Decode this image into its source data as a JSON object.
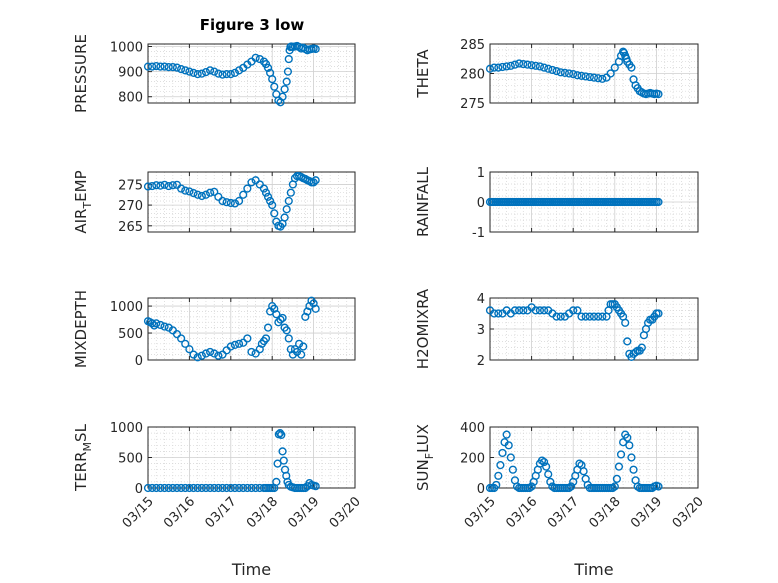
{
  "figure_title": "Figure 3 low",
  "chart_data": [
    {
      "type": "scatter",
      "ylabel": "PRESSURE",
      "ylim": [
        775,
        1010
      ],
      "yticks": [
        800,
        900,
        1000
      ],
      "title": "Figure 3 low",
      "marker_color": "#0072BD",
      "series": [
        {
          "x": [
            15.0,
            15.1,
            15.2,
            15.3,
            15.4,
            15.5,
            15.6,
            15.7,
            15.8,
            15.9,
            16.0,
            16.1,
            16.2,
            16.3,
            16.4,
            16.5,
            16.6,
            16.7,
            16.8,
            16.9,
            17.0,
            17.1,
            17.2,
            17.3,
            17.4,
            17.5,
            17.6,
            17.7,
            17.8,
            17.85,
            17.9,
            17.95,
            18.0,
            18.05,
            18.1,
            18.15,
            18.2,
            18.25,
            18.3,
            18.35,
            18.38,
            18.4,
            18.42,
            18.44,
            18.46,
            18.5,
            18.55,
            18.6,
            18.65,
            18.7,
            18.75,
            18.8,
            18.85,
            18.9,
            18.95,
            19.0,
            19.05
          ],
          "y": [
            920,
            920,
            922,
            920,
            920,
            918,
            918,
            916,
            910,
            905,
            900,
            895,
            890,
            892,
            898,
            905,
            900,
            892,
            888,
            890,
            890,
            895,
            905,
            915,
            928,
            940,
            955,
            950,
            940,
            930,
            915,
            895,
            870,
            840,
            810,
            785,
            778,
            800,
            830,
            860,
            900,
            950,
            985,
            998,
            1000,
            998,
            1000,
            1002,
            998,
            992,
            995,
            990,
            985,
            988,
            990,
            992,
            990
          ]
        }
      ]
    },
    {
      "type": "scatter",
      "ylabel": "THETA",
      "ylim": [
        275,
        285
      ],
      "yticks": [
        275,
        280,
        285
      ],
      "marker_color": "#0072BD",
      "series": [
        {
          "x": [
            15.0,
            15.1,
            15.2,
            15.3,
            15.4,
            15.5,
            15.6,
            15.7,
            15.8,
            15.9,
            16.0,
            16.1,
            16.2,
            16.3,
            16.4,
            16.5,
            16.6,
            16.7,
            16.8,
            16.9,
            17.0,
            17.1,
            17.2,
            17.3,
            17.4,
            17.5,
            17.6,
            17.7,
            17.8,
            17.9,
            18.0,
            18.1,
            18.15,
            18.2,
            18.22,
            18.25,
            18.28,
            18.3,
            18.35,
            18.4,
            18.45,
            18.5,
            18.55,
            18.6,
            18.65,
            18.7,
            18.75,
            18.8,
            18.85,
            18.9,
            18.95,
            19.0,
            19.05
          ],
          "y": [
            280.8,
            281.0,
            281.0,
            281.1,
            281.2,
            281.3,
            281.5,
            281.7,
            281.6,
            281.5,
            281.4,
            281.3,
            281.2,
            281.0,
            280.8,
            280.6,
            280.4,
            280.2,
            280.1,
            280.0,
            279.9,
            279.7,
            279.6,
            279.5,
            279.4,
            279.3,
            279.2,
            279.1,
            279.3,
            280.0,
            281.0,
            282.0,
            283.0,
            283.7,
            283.5,
            283.0,
            282.5,
            282.0,
            281.5,
            281.0,
            279.0,
            278.0,
            277.5,
            277.0,
            276.8,
            276.6,
            276.5,
            276.6,
            276.7,
            276.6,
            276.5,
            276.6,
            276.5
          ]
        }
      ]
    },
    {
      "type": "scatter",
      "ylabel": "AIR_TEMP",
      "ylim": [
        263.5,
        278
      ],
      "yticks": [
        265,
        270,
        275
      ],
      "marker_color": "#0072BD",
      "series": [
        {
          "x": [
            15.0,
            15.1,
            15.2,
            15.3,
            15.4,
            15.5,
            15.6,
            15.7,
            15.8,
            15.9,
            16.0,
            16.1,
            16.2,
            16.3,
            16.4,
            16.5,
            16.6,
            16.7,
            16.8,
            16.9,
            17.0,
            17.1,
            17.2,
            17.3,
            17.4,
            17.5,
            17.6,
            17.7,
            17.8,
            17.85,
            17.9,
            17.95,
            18.0,
            18.05,
            18.1,
            18.15,
            18.2,
            18.25,
            18.3,
            18.35,
            18.4,
            18.45,
            18.5,
            18.55,
            18.6,
            18.65,
            18.7,
            18.75,
            18.8,
            18.85,
            18.9,
            18.95,
            19.0,
            19.05
          ],
          "y": [
            274.5,
            274.6,
            274.8,
            274.7,
            274.9,
            274.6,
            274.8,
            274.9,
            274.0,
            273.5,
            273.3,
            272.9,
            272.5,
            272.2,
            272.5,
            273.0,
            273.2,
            272.0,
            271.0,
            270.7,
            270.5,
            270.4,
            271.0,
            272.5,
            274.0,
            275.5,
            276.0,
            275.0,
            274.0,
            273.0,
            272.0,
            271.0,
            270.0,
            268.0,
            266.0,
            265.0,
            264.8,
            265.5,
            267.0,
            269.0,
            271.0,
            273.0,
            275.0,
            276.5,
            277.0,
            277.0,
            276.8,
            276.5,
            276.3,
            276.0,
            275.8,
            275.5,
            275.5,
            276.0
          ]
        }
      ]
    },
    {
      "type": "scatter",
      "ylabel": "RAINFALL",
      "ylim": [
        -1,
        1
      ],
      "yticks": [
        -1,
        0,
        1
      ],
      "marker_color": "#0072BD",
      "series": [
        {
          "x_range": [
            15.0,
            19.05
          ],
          "n": 90,
          "y_constant": 0
        }
      ]
    },
    {
      "type": "scatter",
      "ylabel": "MIXDEPTH",
      "ylim": [
        0,
        1150
      ],
      "yticks": [
        0,
        500,
        1000
      ],
      "marker_color": "#0072BD",
      "series": [
        {
          "x": [
            15.0,
            15.05,
            15.1,
            15.15,
            15.2,
            15.3,
            15.4,
            15.5,
            15.6,
            15.7,
            15.8,
            15.9,
            16.0,
            16.1,
            16.2,
            16.3,
            16.4,
            16.5,
            16.6,
            16.7,
            16.8,
            16.9,
            17.0,
            17.1,
            17.2,
            17.3,
            17.4,
            17.5,
            17.6,
            17.7,
            17.75,
            17.8,
            17.85,
            17.9,
            17.95,
            18.0,
            18.05,
            18.1,
            18.15,
            18.2,
            18.25,
            18.3,
            18.35,
            18.4,
            18.45,
            18.5,
            18.55,
            18.6,
            18.65,
            18.7,
            18.75,
            18.8,
            18.85,
            18.9,
            18.95,
            19.0,
            19.05
          ],
          "y": [
            720,
            700,
            680,
            640,
            680,
            650,
            620,
            600,
            550,
            480,
            400,
            300,
            200,
            100,
            50,
            80,
            120,
            150,
            120,
            80,
            100,
            180,
            250,
            280,
            300,
            320,
            400,
            150,
            120,
            200,
            300,
            350,
            400,
            600,
            900,
            1000,
            950,
            850,
            700,
            750,
            780,
            600,
            550,
            400,
            200,
            100,
            200,
            150,
            300,
            100,
            250,
            800,
            900,
            1000,
            1100,
            1050,
            950
          ]
        }
      ]
    },
    {
      "type": "scatter",
      "ylabel": "H2OMIXRA",
      "ylim": [
        2,
        4
      ],
      "yticks": [
        2,
        3,
        4
      ],
      "marker_color": "#0072BD",
      "series": [
        {
          "x": [
            15.0,
            15.1,
            15.2,
            15.3,
            15.4,
            15.5,
            15.6,
            15.7,
            15.8,
            15.9,
            16.0,
            16.1,
            16.2,
            16.3,
            16.4,
            16.5,
            16.6,
            16.7,
            16.8,
            16.9,
            17.0,
            17.1,
            17.2,
            17.3,
            17.4,
            17.5,
            17.6,
            17.7,
            17.8,
            17.85,
            17.9,
            17.95,
            18.0,
            18.05,
            18.1,
            18.15,
            18.2,
            18.25,
            18.3,
            18.35,
            18.4,
            18.45,
            18.5,
            18.55,
            18.6,
            18.65,
            18.7,
            18.75,
            18.8,
            18.85,
            18.9,
            18.95,
            19.0,
            19.05
          ],
          "y": [
            3.6,
            3.5,
            3.5,
            3.5,
            3.6,
            3.5,
            3.6,
            3.6,
            3.6,
            3.6,
            3.7,
            3.6,
            3.6,
            3.6,
            3.6,
            3.5,
            3.4,
            3.4,
            3.4,
            3.5,
            3.6,
            3.6,
            3.4,
            3.4,
            3.4,
            3.4,
            3.4,
            3.4,
            3.4,
            3.6,
            3.8,
            3.8,
            3.8,
            3.7,
            3.6,
            3.5,
            3.4,
            3.2,
            2.6,
            2.2,
            2.1,
            2.2,
            2.25,
            2.3,
            2.3,
            2.4,
            2.8,
            3.0,
            3.2,
            3.3,
            3.3,
            3.4,
            3.5,
            3.5
          ]
        }
      ]
    },
    {
      "type": "scatter",
      "ylabel": "TERR_MSL",
      "ylim": [
        0,
        1000
      ],
      "yticks": [
        0,
        500,
        1000
      ],
      "marker_color": "#0072BD",
      "series": [
        {
          "x": [
            15.0,
            15.1,
            15.2,
            15.3,
            15.4,
            15.5,
            15.6,
            15.7,
            15.8,
            15.9,
            16.0,
            16.1,
            16.2,
            16.3,
            16.4,
            16.5,
            16.6,
            16.7,
            16.8,
            16.9,
            17.0,
            17.1,
            17.2,
            17.3,
            17.4,
            17.5,
            17.6,
            17.7,
            17.8,
            17.85,
            17.9,
            17.95,
            18.0,
            18.05,
            18.1,
            18.13,
            18.16,
            18.19,
            18.22,
            18.25,
            18.28,
            18.31,
            18.34,
            18.37,
            18.4,
            18.45,
            18.5,
            18.55,
            18.6,
            18.65,
            18.7,
            18.75,
            18.8,
            18.85,
            18.9,
            18.95,
            19.0,
            19.05
          ],
          "y": [
            0,
            0,
            0,
            0,
            0,
            0,
            0,
            0,
            0,
            0,
            0,
            0,
            0,
            0,
            0,
            0,
            0,
            0,
            0,
            0,
            0,
            0,
            0,
            0,
            0,
            0,
            0,
            0,
            0,
            0,
            0,
            0,
            0,
            0,
            100,
            400,
            880,
            900,
            870,
            600,
            450,
            300,
            200,
            100,
            50,
            20,
            10,
            0,
            0,
            0,
            0,
            0,
            0,
            30,
            80,
            50,
            40,
            30
          ]
        }
      ]
    },
    {
      "type": "scatter",
      "ylabel": "SUN_FLUX",
      "ylim": [
        0,
        400
      ],
      "yticks": [
        0,
        200,
        400
      ],
      "marker_color": "#0072BD",
      "series": [
        {
          "x": [
            15.0,
            15.05,
            15.1,
            15.15,
            15.2,
            15.25,
            15.3,
            15.35,
            15.4,
            15.45,
            15.5,
            15.55,
            15.6,
            15.65,
            15.7,
            15.75,
            15.8,
            15.85,
            15.9,
            15.95,
            16.0,
            16.05,
            16.1,
            16.15,
            16.2,
            16.25,
            16.3,
            16.35,
            16.4,
            16.45,
            16.5,
            16.55,
            16.6,
            16.65,
            16.7,
            16.75,
            16.8,
            16.85,
            16.9,
            16.95,
            17.0,
            17.05,
            17.1,
            17.15,
            17.2,
            17.25,
            17.3,
            17.35,
            17.4,
            17.45,
            17.5,
            17.55,
            17.6,
            17.65,
            17.7,
            17.75,
            17.8,
            17.85,
            17.9,
            17.95,
            18.0,
            18.05,
            18.1,
            18.15,
            18.2,
            18.25,
            18.3,
            18.35,
            18.4,
            18.45,
            18.5,
            18.55,
            18.6,
            18.65,
            18.7,
            18.75,
            18.8,
            18.85,
            18.9,
            18.95,
            19.0,
            19.05
          ],
          "y": [
            0,
            0,
            0,
            20,
            80,
            150,
            230,
            300,
            350,
            280,
            200,
            120,
            50,
            10,
            0,
            0,
            0,
            0,
            0,
            0,
            10,
            40,
            80,
            120,
            160,
            180,
            170,
            140,
            90,
            40,
            10,
            0,
            0,
            0,
            0,
            0,
            0,
            0,
            0,
            10,
            40,
            80,
            120,
            160,
            150,
            110,
            60,
            20,
            0,
            0,
            0,
            0,
            0,
            0,
            0,
            0,
            0,
            0,
            0,
            0,
            10,
            60,
            140,
            220,
            300,
            350,
            330,
            280,
            200,
            120,
            50,
            10,
            0,
            0,
            0,
            0,
            0,
            0,
            0,
            10,
            15,
            10
          ]
        }
      ]
    }
  ],
  "xaxis": {
    "label": "Time",
    "range": [
      15,
      20
    ],
    "ticks": [
      15,
      16,
      17,
      18,
      19,
      20
    ],
    "tick_labels": [
      "03/15",
      "03/16",
      "03/17",
      "03/18",
      "03/19",
      "03/20"
    ]
  }
}
